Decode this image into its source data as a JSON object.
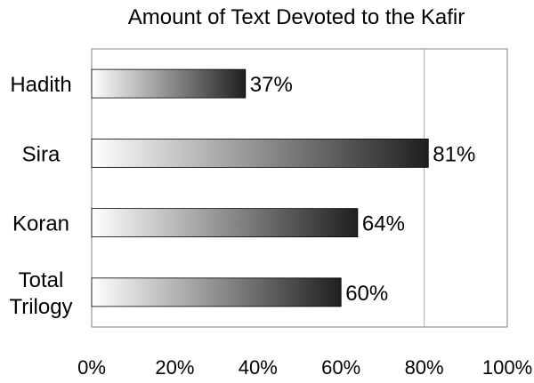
{
  "chart_data": {
    "type": "bar",
    "orientation": "horizontal",
    "title": "Amount of Text Devoted to the Kafir",
    "categories": [
      "Hadith",
      "Sira",
      "Koran",
      "Total Trilogy"
    ],
    "category_lines": [
      [
        "Hadith"
      ],
      [
        "Sira"
      ],
      [
        "Koran"
      ],
      [
        "Total",
        "Trilogy"
      ]
    ],
    "values": [
      37,
      81,
      64,
      60
    ],
    "data_labels": [
      "37%",
      "81%",
      "64%",
      "60%"
    ],
    "xlim": [
      0,
      100
    ],
    "xticks": [
      0,
      20,
      40,
      60,
      80,
      100
    ],
    "xtick_labels": [
      "0%",
      "20%",
      "40%",
      "60%",
      "80%",
      "100%"
    ],
    "grid": "vertical gridline at 80%",
    "legend": "none",
    "colors": {
      "bar_start": "#ffffff",
      "bar_end": "#1f1f1f",
      "axis": "#808080",
      "grid": "#b0b0b0"
    }
  }
}
